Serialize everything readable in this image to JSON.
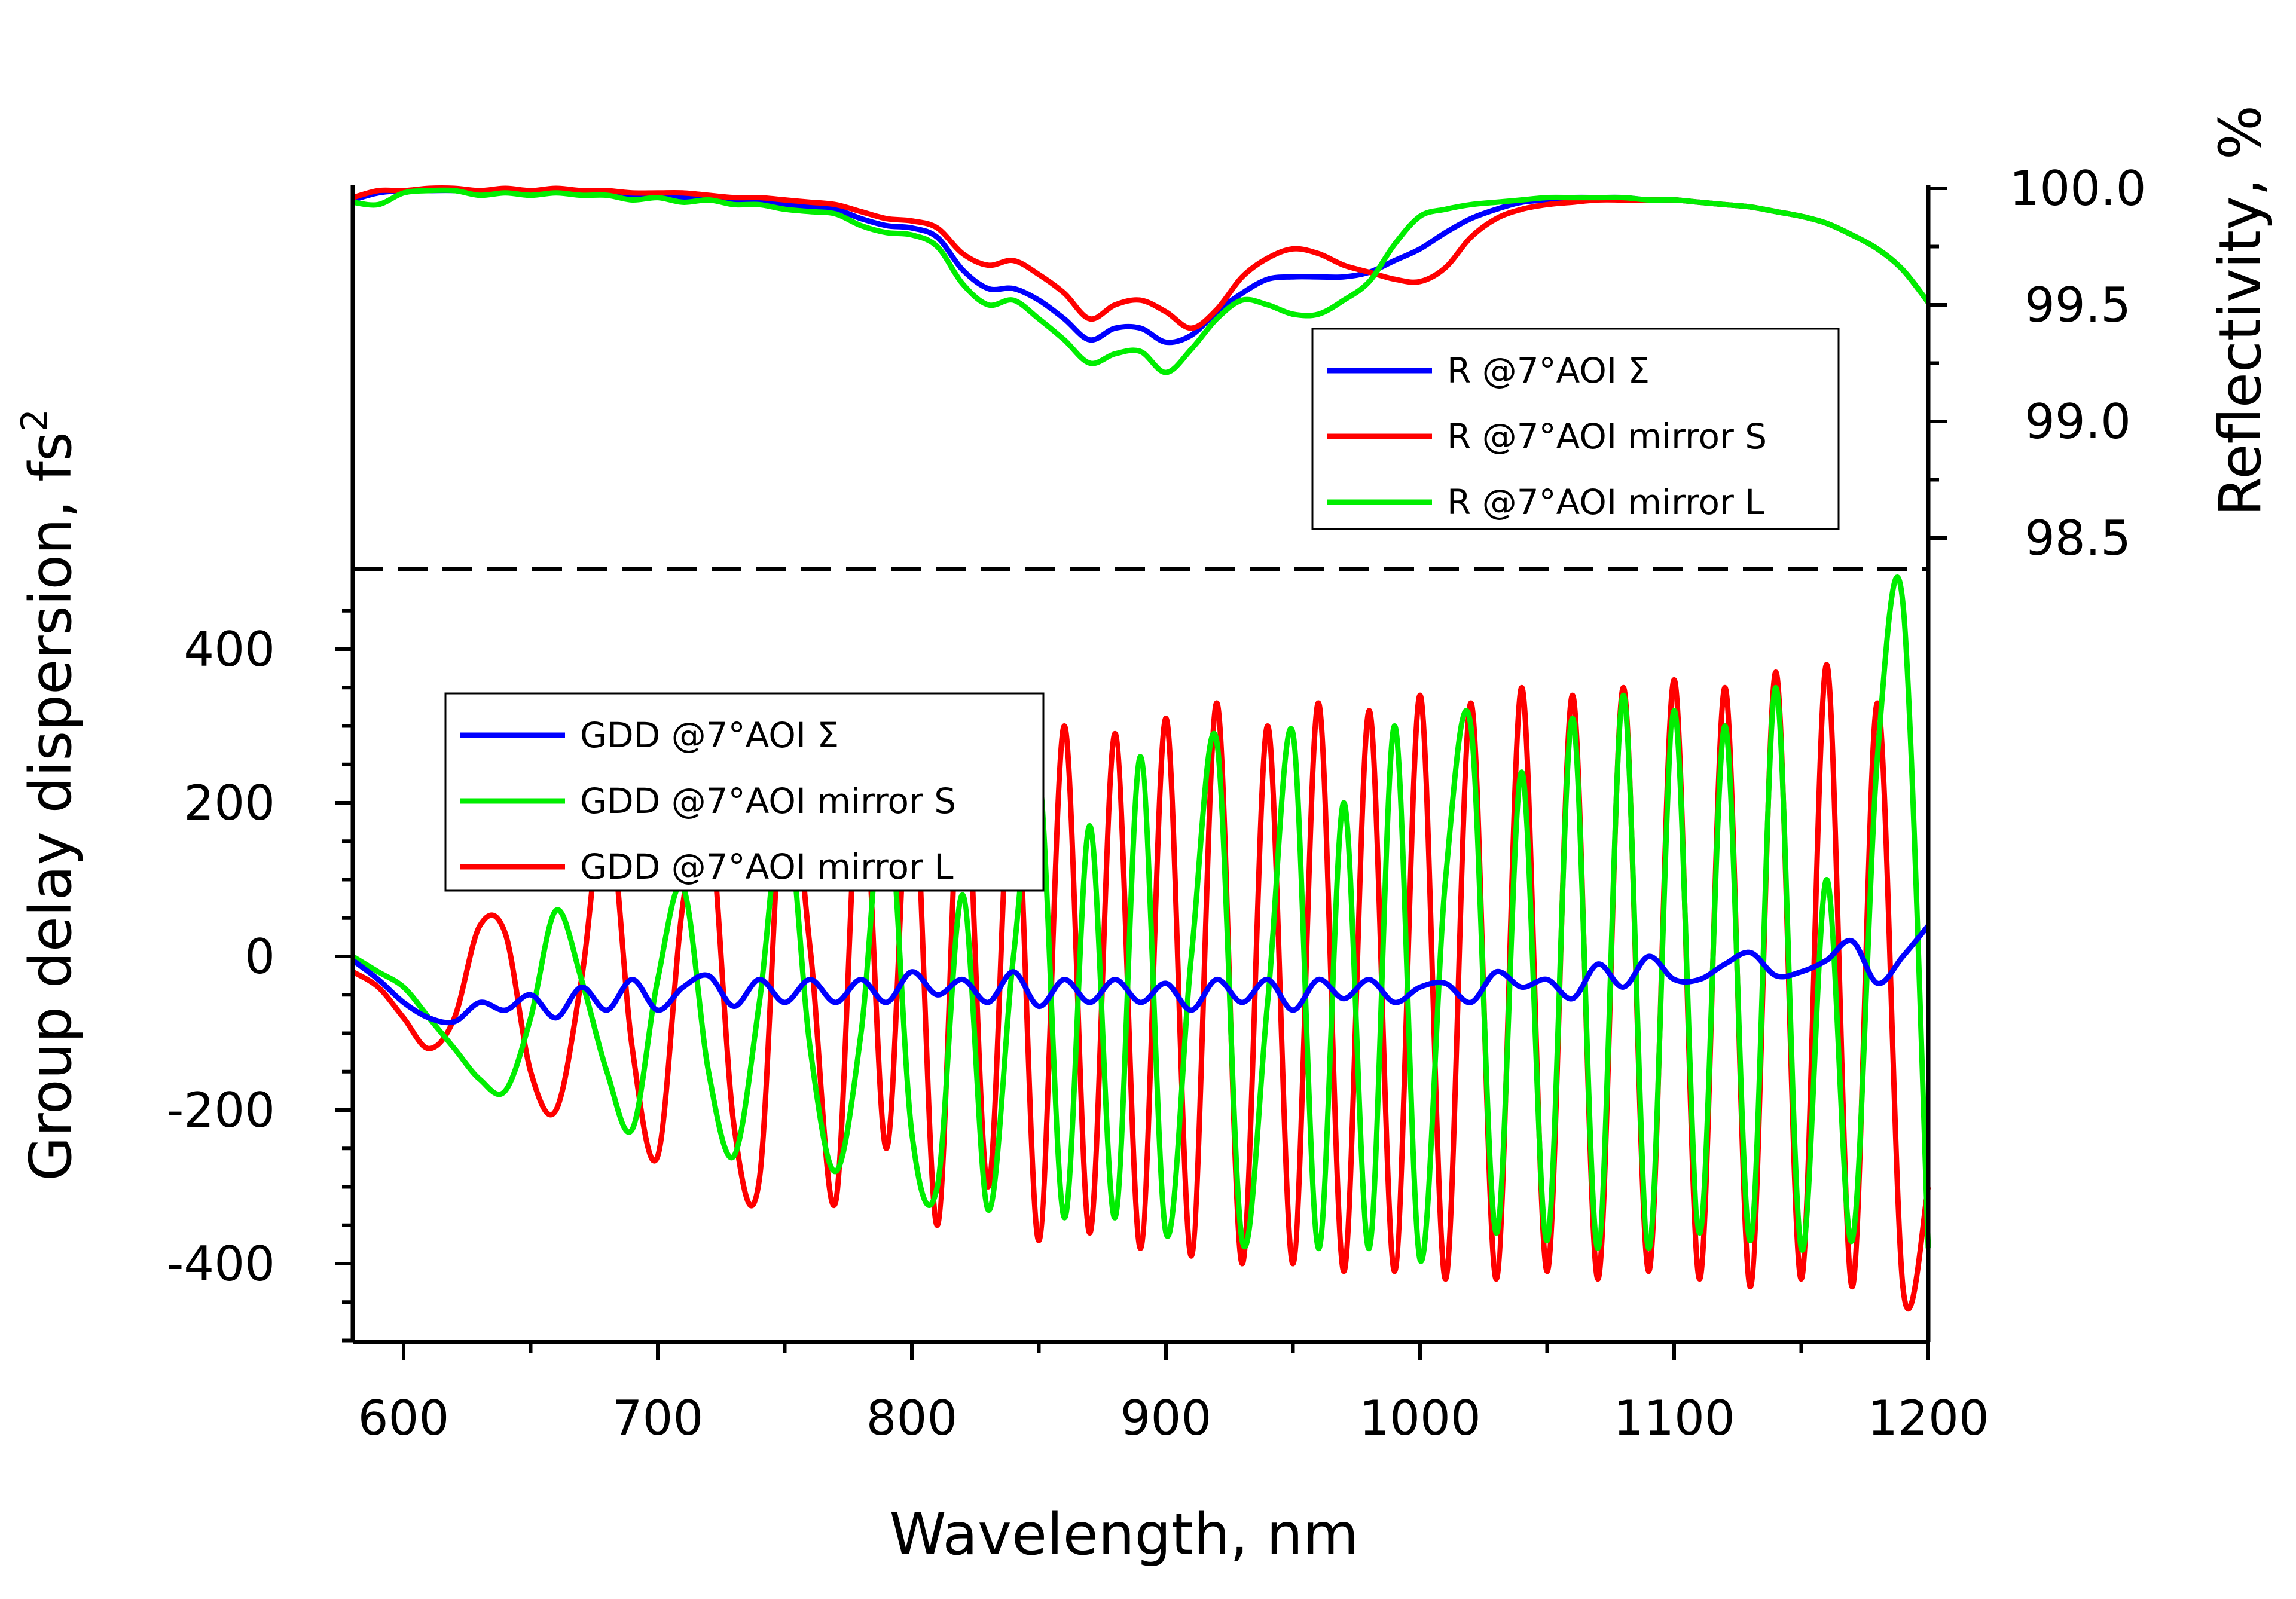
{
  "chart_data": {
    "type": "line",
    "x": [
      580,
      590,
      600,
      610,
      620,
      630,
      640,
      650,
      660,
      670,
      680,
      690,
      700,
      710,
      720,
      730,
      740,
      750,
      760,
      770,
      780,
      790,
      800,
      810,
      820,
      830,
      840,
      850,
      860,
      870,
      880,
      890,
      900,
      910,
      920,
      930,
      940,
      950,
      960,
      970,
      980,
      990,
      1000,
      1010,
      1020,
      1030,
      1040,
      1050,
      1060,
      1070,
      1080,
      1090,
      1100,
      1110,
      1120,
      1130,
      1140,
      1150,
      1160,
      1170,
      1180,
      1190,
      1200
    ],
    "xlabel": "Wavelength, nm",
    "xlim": [
      580,
      1200
    ],
    "xticks": [
      "600",
      "700",
      "800",
      "900",
      "1000",
      "1100",
      "1200"
    ],
    "top_panel": {
      "ylabel": "Reflectivity, %",
      "ylim": [
        98.3,
        100.0
      ],
      "yticks": [
        "98.5",
        "99.0",
        "99.5",
        "100.0"
      ],
      "legend_position": "bottom-right",
      "series": [
        {
          "name": "R @7°AOI Σ",
          "color": "#0000ff",
          "values": [
            99.95,
            99.98,
            99.99,
            99.99,
            99.99,
            99.98,
            99.99,
            99.98,
            99.99,
            99.98,
            99.98,
            99.97,
            99.97,
            99.96,
            99.96,
            99.95,
            99.94,
            99.93,
            99.92,
            99.91,
            99.87,
            99.84,
            99.83,
            99.79,
            99.65,
            99.57,
            99.57,
            99.52,
            99.44,
            99.35,
            99.4,
            99.4,
            99.34,
            99.37,
            99.47,
            99.55,
            99.61,
            99.62,
            99.62,
            99.62,
            99.64,
            99.69,
            99.74,
            99.81,
            99.87,
            99.91,
            99.94,
            99.95,
            99.96,
            99.96,
            99.96,
            99.95,
            99.95,
            99.94,
            99.93,
            99.92,
            99.9,
            99.88,
            99.85,
            99.8,
            99.74,
            99.65,
            99.51
          ]
        },
        {
          "name": "R @7°AOI mirror S",
          "color": "#ff0000",
          "values": [
            99.96,
            99.99,
            99.99,
            100.0,
            100.0,
            99.99,
            100.0,
            99.99,
            100.0,
            99.99,
            99.99,
            99.98,
            99.98,
            99.98,
            99.97,
            99.96,
            99.96,
            99.95,
            99.94,
            99.93,
            99.9,
            99.87,
            99.86,
            99.83,
            99.72,
            99.67,
            99.69,
            99.63,
            99.55,
            99.44,
            99.5,
            99.52,
            99.47,
            99.4,
            99.48,
            99.62,
            99.7,
            99.74,
            99.72,
            99.67,
            99.64,
            99.61,
            99.6,
            99.66,
            99.79,
            99.87,
            99.91,
            99.93,
            99.94,
            99.95,
            99.95,
            99.95,
            99.95,
            99.94,
            99.93,
            99.92,
            99.9,
            99.88,
            99.85,
            99.8,
            99.74,
            99.65,
            99.51
          ]
        },
        {
          "name": "R @7°AOI mirror L",
          "color": "#00ee00",
          "values": [
            99.94,
            99.93,
            99.98,
            99.99,
            99.99,
            99.97,
            99.98,
            99.97,
            99.98,
            99.97,
            99.97,
            99.95,
            99.96,
            99.94,
            99.95,
            99.93,
            99.93,
            99.91,
            99.9,
            99.89,
            99.84,
            99.81,
            99.8,
            99.75,
            99.59,
            99.5,
            99.52,
            99.44,
            99.35,
            99.25,
            99.29,
            99.3,
            99.21,
            99.31,
            99.44,
            99.52,
            99.5,
            99.46,
            99.46,
            99.52,
            99.6,
            99.76,
            99.88,
            99.91,
            99.93,
            99.94,
            99.95,
            99.96,
            99.96,
            99.96,
            99.96,
            99.95,
            99.95,
            99.94,
            99.93,
            99.92,
            99.9,
            99.88,
            99.85,
            99.8,
            99.74,
            99.65,
            99.51
          ]
        }
      ]
    },
    "bottom_panel": {
      "ylabel": "Group delay dispersion, fs",
      "ylabel_sup": "2",
      "ylim": [
        -500,
        500
      ],
      "yticks": [
        "-400",
        "-200",
        "0",
        "200",
        "400"
      ],
      "legend_position": "upper-left",
      "series": [
        {
          "name": "GDD @7°AOI Σ",
          "color": "#0000ff",
          "values": [
            -5,
            -30,
            -60,
            -80,
            -85,
            -60,
            -70,
            -50,
            -80,
            -40,
            -70,
            -30,
            -70,
            -40,
            -25,
            -65,
            -30,
            -60,
            -30,
            -60,
            -30,
            -60,
            -20,
            -50,
            -30,
            -60,
            -20,
            -65,
            -30,
            -60,
            -30,
            -60,
            -35,
            -70,
            -30,
            -60,
            -30,
            -70,
            -30,
            -55,
            -30,
            -60,
            -40,
            -35,
            -60,
            -20,
            -40,
            -30,
            -55,
            -10,
            -40,
            0,
            -30,
            -30,
            -10,
            5,
            -25,
            -20,
            -5,
            20,
            -35,
            0,
            40
          ]
        },
        {
          "name": "GDD @7°AOI mirror S",
          "color": "#00ee00",
          "values": [
            0,
            -20,
            -40,
            -80,
            -120,
            -160,
            -175,
            -80,
            60,
            -30,
            -150,
            -225,
            -30,
            90,
            -150,
            -260,
            -60,
            200,
            -120,
            -280,
            -100,
            220,
            -230,
            -300,
            80,
            -330,
            0,
            240,
            -340,
            170,
            -340,
            260,
            -360,
            0,
            280,
            -370,
            -60,
            290,
            -380,
            200,
            -380,
            300,
            -395,
            100,
            300,
            -360,
            240,
            -370,
            310,
            -380,
            340,
            -380,
            320,
            -360,
            300,
            -370,
            350,
            -380,
            100,
            -370,
            260,
            460,
            -380
          ]
        },
        {
          "name": "GDD @7°AOI mirror L",
          "color": "#ff0000",
          "values": [
            -20,
            -40,
            -80,
            -120,
            -80,
            40,
            30,
            -150,
            -200,
            -30,
            200,
            -120,
            -260,
            70,
            190,
            -220,
            -290,
            250,
            10,
            -320,
            260,
            -250,
            270,
            -350,
            290,
            -300,
            280,
            -370,
            300,
            -360,
            290,
            -380,
            310,
            -390,
            330,
            -400,
            300,
            -400,
            330,
            -410,
            320,
            -410,
            340,
            -420,
            330,
            -420,
            350,
            -410,
            340,
            -420,
            350,
            -410,
            360,
            -420,
            350,
            -430,
            370,
            -420,
            380,
            -430,
            330,
            -430,
            -300
          ]
        }
      ]
    }
  }
}
